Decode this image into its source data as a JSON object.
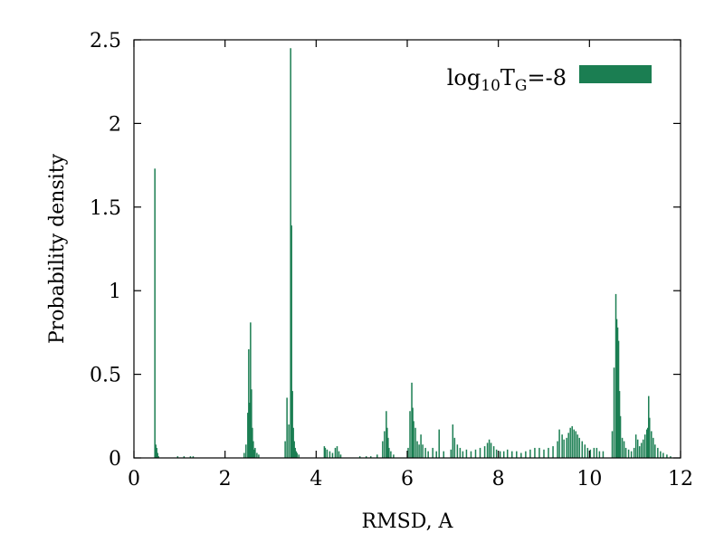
{
  "chart_data": {
    "type": "bar",
    "title": "",
    "xlabel": "RMSD, A",
    "ylabel": "Probability density",
    "xlim": [
      0,
      12
    ],
    "ylim": [
      0,
      2.5
    ],
    "xticks": [
      0,
      2,
      4,
      6,
      8,
      10,
      12
    ],
    "xtick_labels": [
      "0",
      "2",
      "4",
      "6",
      "8",
      "10",
      "12"
    ],
    "yticks": [
      0,
      0.5,
      1,
      1.5,
      2,
      2.5
    ],
    "ytick_labels": [
      "0",
      "0.5",
      "1",
      "1.5",
      "2",
      "2.5"
    ],
    "grid": false,
    "legend": {
      "placement": "top-right",
      "prefix": "log",
      "sub1": "10",
      "main": "T",
      "sub2": "G",
      "suffix": "=-8"
    },
    "color": "#1b7e52",
    "bar_width": 0.02,
    "series": [
      {
        "x": [
          0.46,
          0.48,
          0.5,
          0.52,
          0.54,
          0.96,
          1.1,
          1.24,
          1.3,
          2.42,
          2.46,
          2.5,
          2.52,
          2.54,
          2.56,
          2.58,
          2.6,
          2.62,
          2.64,
          2.66,
          2.7,
          2.74,
          3.32,
          3.36,
          3.4,
          3.44,
          3.46,
          3.48,
          3.5,
          3.52,
          3.54,
          3.56,
          3.58,
          3.62,
          4.18,
          4.2,
          4.24,
          4.3,
          4.36,
          4.42,
          4.46,
          4.5,
          4.54,
          4.96,
          5.1,
          5.2,
          5.34,
          5.46,
          5.5,
          5.54,
          5.56,
          5.58,
          5.6,
          5.64,
          5.7,
          6.02,
          6.06,
          6.1,
          6.12,
          6.14,
          6.18,
          6.22,
          6.26,
          6.3,
          6.34,
          6.4,
          6.46,
          6.56,
          6.64,
          6.7,
          6.8,
          6.96,
          7.0,
          7.04,
          7.1,
          7.16,
          7.22,
          7.3,
          7.4,
          7.5,
          7.6,
          7.7,
          7.76,
          7.8,
          7.84,
          7.9,
          7.96,
          8.04,
          8.12,
          8.2,
          8.3,
          8.4,
          8.5,
          8.6,
          8.7,
          8.8,
          8.9,
          9.0,
          9.1,
          9.2,
          9.3,
          9.34,
          9.4,
          9.44,
          9.5,
          9.54,
          9.58,
          9.62,
          9.66,
          9.7,
          9.74,
          9.78,
          9.84,
          9.9,
          9.96,
          10.02,
          10.1,
          10.16,
          10.22,
          10.3,
          10.5,
          10.54,
          10.58,
          10.6,
          10.62,
          10.64,
          10.66,
          10.68,
          10.72,
          10.76,
          10.8,
          10.86,
          10.92,
          10.98,
          11.02,
          11.06,
          11.1,
          11.14,
          11.18,
          11.22,
          11.26,
          11.28,
          11.3,
          11.32,
          11.36,
          11.4,
          11.44,
          11.5,
          11.56,
          11.62,
          11.7,
          11.78
        ],
        "values": [
          1.73,
          0.08,
          0.06,
          0.03,
          0.01,
          0.01,
          0.01,
          0.01,
          0.01,
          0.03,
          0.08,
          0.27,
          0.65,
          0.33,
          0.81,
          0.41,
          0.18,
          0.1,
          0.05,
          0.06,
          0.03,
          0.02,
          0.1,
          0.36,
          0.2,
          2.45,
          1.39,
          0.4,
          0.18,
          0.1,
          0.06,
          0.04,
          0.03,
          0.02,
          0.07,
          0.06,
          0.05,
          0.04,
          0.03,
          0.06,
          0.07,
          0.04,
          0.02,
          0.01,
          0.01,
          0.01,
          0.02,
          0.1,
          0.16,
          0.28,
          0.18,
          0.12,
          0.06,
          0.04,
          0.02,
          0.06,
          0.28,
          0.45,
          0.3,
          0.22,
          0.18,
          0.1,
          0.08,
          0.14,
          0.08,
          0.06,
          0.04,
          0.06,
          0.04,
          0.17,
          0.04,
          0.05,
          0.2,
          0.12,
          0.08,
          0.06,
          0.04,
          0.05,
          0.04,
          0.05,
          0.06,
          0.07,
          0.09,
          0.11,
          0.09,
          0.07,
          0.05,
          0.04,
          0.04,
          0.05,
          0.04,
          0.04,
          0.03,
          0.04,
          0.05,
          0.06,
          0.06,
          0.05,
          0.06,
          0.07,
          0.1,
          0.17,
          0.14,
          0.11,
          0.12,
          0.15,
          0.18,
          0.19,
          0.17,
          0.16,
          0.14,
          0.12,
          0.1,
          0.08,
          0.06,
          0.05,
          0.06,
          0.06,
          0.04,
          0.04,
          0.16,
          0.54,
          0.98,
          0.83,
          0.78,
          0.7,
          0.4,
          0.25,
          0.12,
          0.1,
          0.06,
          0.05,
          0.04,
          0.06,
          0.14,
          0.11,
          0.07,
          0.09,
          0.11,
          0.14,
          0.17,
          0.18,
          0.37,
          0.24,
          0.16,
          0.12,
          0.08,
          0.06,
          0.04,
          0.03,
          0.02,
          0.01
        ]
      }
    ]
  }
}
